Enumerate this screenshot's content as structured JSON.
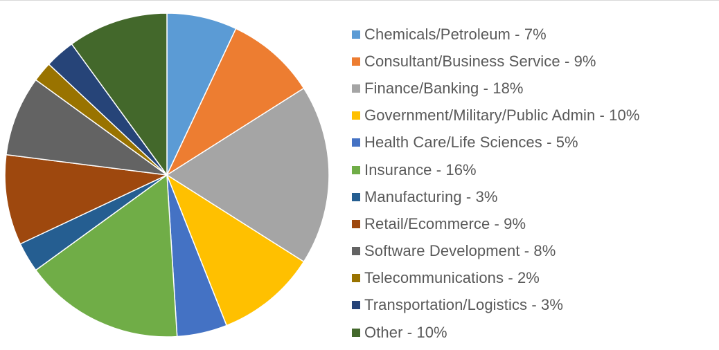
{
  "chart_data": {
    "type": "pie",
    "title": "",
    "start_angle_deg": 0,
    "direction": "clockwise",
    "legend_position": "right",
    "slices": [
      {
        "label": "Chemicals/Petroleum -  7%",
        "value": 7,
        "color": "#5b9bd5"
      },
      {
        "label": "Consultant/Business Service -  9%",
        "value": 9,
        "color": "#ed7d31"
      },
      {
        "label": "Finance/Banking -  18%",
        "value": 18,
        "color": "#a5a5a5"
      },
      {
        "label": "Government/Military/Public Admin -  10%",
        "value": 10,
        "color": "#ffc000"
      },
      {
        "label": "Health Care/Life Sciences -  5%",
        "value": 5,
        "color": "#4472c4"
      },
      {
        "label": "Insurance -  16%",
        "value": 16,
        "color": "#70ad47"
      },
      {
        "label": "Manufacturing -  3%",
        "value": 3,
        "color": "#255e91"
      },
      {
        "label": "Retail/Ecommerce -  9%",
        "value": 9,
        "color": "#9e480e"
      },
      {
        "label": "Software Development -  8%",
        "value": 8,
        "color": "#636363"
      },
      {
        "label": "Telecommunications -  2%",
        "value": 2,
        "color": "#997300"
      },
      {
        "label": "Transportation/Logistics - 3%",
        "value": 3,
        "color": "#264478"
      },
      {
        "label": "Other -  10%",
        "value": 10,
        "color": "#43682b"
      }
    ]
  }
}
